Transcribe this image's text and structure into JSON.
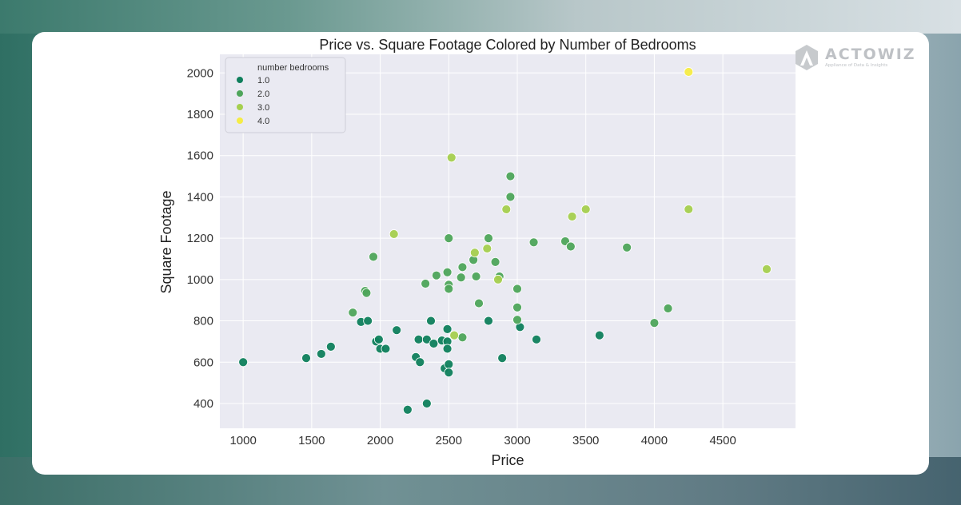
{
  "brand": {
    "name": "ACTOWIZ",
    "tagline": "Appliance of Data & Insights",
    "logo_icon": "actowiz-a-logo-icon"
  },
  "colors": {
    "plot_background": "#eaeaf2",
    "grid": "#ffffff",
    "bedrooms_1": "#0f7f5c",
    "bedrooms_2": "#4ea55a",
    "bedrooms_3": "#a5cf4e",
    "bedrooms_4": "#f5ec45"
  },
  "chart_data": {
    "type": "scatter",
    "title": "Price vs. Square Footage Colored by Number of Bedrooms",
    "xlabel": "Price",
    "ylabel": "Square Footage",
    "xlim": [
      830,
      5030
    ],
    "ylim": [
      280,
      2090
    ],
    "xticks": [
      1000,
      1500,
      2000,
      2500,
      3000,
      3500,
      4000,
      4500
    ],
    "yticks": [
      400,
      600,
      800,
      1000,
      1200,
      1400,
      1600,
      1800,
      2000
    ],
    "grid": true,
    "legend": {
      "title": "number bedrooms",
      "placement": "top-left",
      "entries": [
        "1.0",
        "2.0",
        "3.0",
        "4.0"
      ]
    },
    "series": [
      {
        "name": "1.0",
        "color": "#0f7f5c",
        "points": [
          [
            1000,
            600
          ],
          [
            1460,
            620
          ],
          [
            1570,
            640
          ],
          [
            1640,
            675
          ],
          [
            1860,
            795
          ],
          [
            1910,
            800
          ],
          [
            1970,
            700
          ],
          [
            1990,
            710
          ],
          [
            2000,
            665
          ],
          [
            2040,
            665
          ],
          [
            2120,
            755
          ],
          [
            2200,
            370
          ],
          [
            2260,
            625
          ],
          [
            2280,
            710
          ],
          [
            2290,
            600
          ],
          [
            2340,
            400
          ],
          [
            2340,
            710
          ],
          [
            2370,
            800
          ],
          [
            2390,
            690
          ],
          [
            2450,
            705
          ],
          [
            2470,
            570
          ],
          [
            2490,
            760
          ],
          [
            2490,
            700
          ],
          [
            2490,
            665
          ],
          [
            2500,
            590
          ],
          [
            2500,
            550
          ],
          [
            2790,
            800
          ],
          [
            2890,
            620
          ],
          [
            3020,
            770
          ],
          [
            3140,
            710
          ],
          [
            3600,
            730
          ]
        ]
      },
      {
        "name": "2.0",
        "color": "#4ea55a",
        "points": [
          [
            1800,
            840
          ],
          [
            1890,
            945
          ],
          [
            1900,
            935
          ],
          [
            1950,
            1110
          ],
          [
            2330,
            980
          ],
          [
            2410,
            1020
          ],
          [
            2490,
            1035
          ],
          [
            2500,
            1200
          ],
          [
            2500,
            975
          ],
          [
            2500,
            955
          ],
          [
            2590,
            1010
          ],
          [
            2600,
            1060
          ],
          [
            2600,
            720
          ],
          [
            2680,
            1095
          ],
          [
            2700,
            1015
          ],
          [
            2720,
            885
          ],
          [
            2790,
            1200
          ],
          [
            2840,
            1085
          ],
          [
            2870,
            1015
          ],
          [
            2950,
            1500
          ],
          [
            2950,
            1400
          ],
          [
            3000,
            955
          ],
          [
            3000,
            865
          ],
          [
            3000,
            805
          ],
          [
            3120,
            1180
          ],
          [
            3350,
            1185
          ],
          [
            3390,
            1160
          ],
          [
            3800,
            1155
          ],
          [
            4000,
            790
          ],
          [
            4100,
            860
          ]
        ]
      },
      {
        "name": "3.0",
        "color": "#a5cf4e",
        "points": [
          [
            2100,
            1220
          ],
          [
            2520,
            1590
          ],
          [
            2540,
            730
          ],
          [
            2690,
            1130
          ],
          [
            2780,
            1150
          ],
          [
            2860,
            1000
          ],
          [
            2920,
            1340
          ],
          [
            3400,
            1305
          ],
          [
            3500,
            1340
          ],
          [
            4250,
            1340
          ],
          [
            4820,
            1050
          ]
        ]
      },
      {
        "name": "4.0",
        "color": "#f5ec45",
        "points": [
          [
            4250,
            2005
          ]
        ]
      }
    ]
  }
}
